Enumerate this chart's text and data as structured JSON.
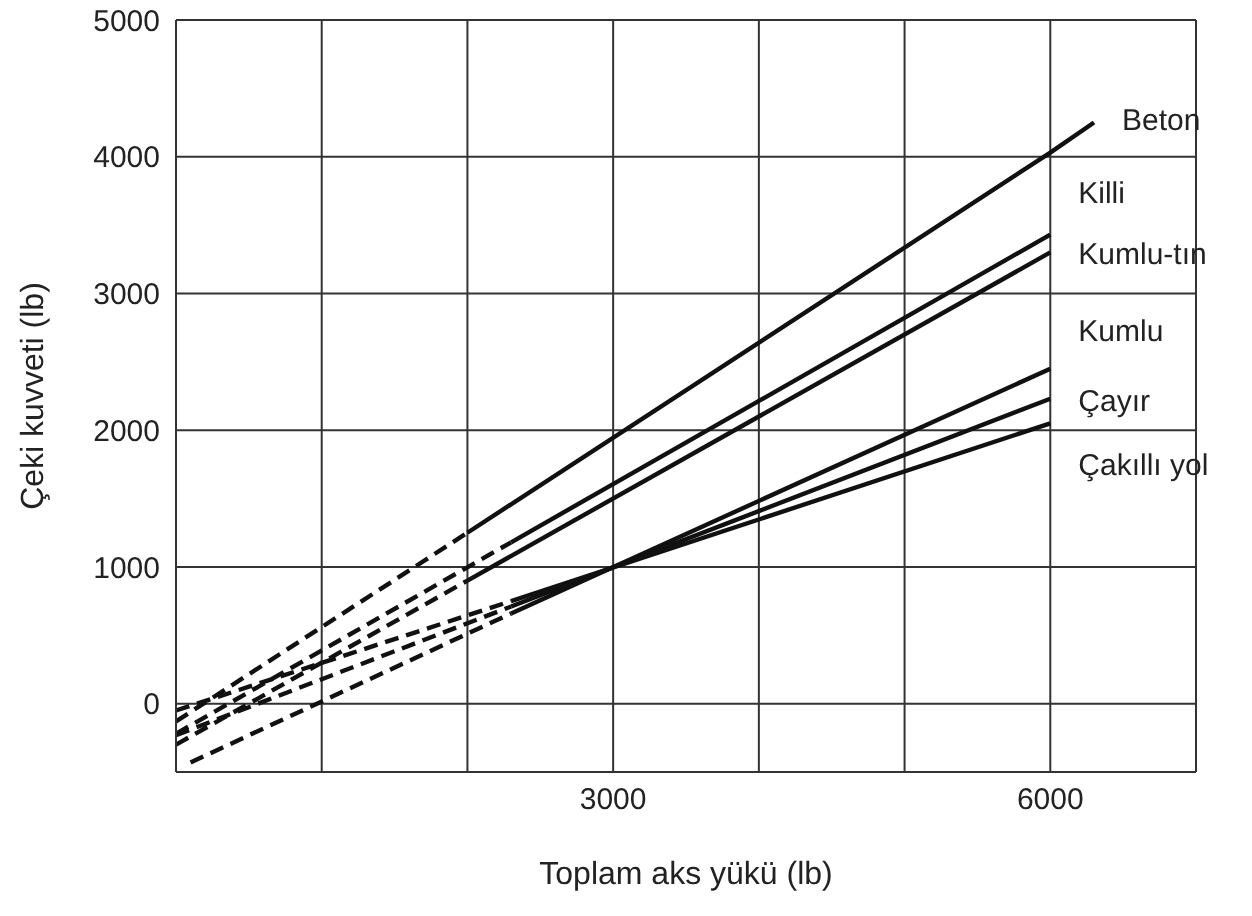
{
  "chart_data": {
    "type": "line",
    "xlabel": "Toplam aks yükü (lb)",
    "ylabel": "Çeki kuvveti (lb)",
    "xlim": [
      0,
      7000
    ],
    "xticks": [
      {
        "value": 0,
        "label": null
      },
      {
        "value": 1000,
        "label": null
      },
      {
        "value": 2000,
        "label": null
      },
      3000,
      {
        "value": 4000,
        "label": null
      },
      {
        "value": 5000,
        "label": null
      },
      6000,
      {
        "value": 7000,
        "label": null
      }
    ],
    "ylim": [
      -500,
      5000
    ],
    "yticks": [
      0,
      1000,
      2000,
      3000,
      4000,
      5000
    ],
    "grid": true,
    "marker": "none",
    "series": [
      {
        "name": "Beton",
        "color": "#111111",
        "line_style": "solid",
        "x": [
          2000,
          6000,
          6300
        ],
        "values": [
          1250,
          4030,
          4250
        ]
      },
      {
        "name": "Killi",
        "color": "#111111",
        "line_style": "solid",
        "x": [
          2300,
          6000
        ],
        "values": [
          1180,
          3430
        ]
      },
      {
        "name": "Kumlu-tın",
        "color": "#111111",
        "line_style": "solid",
        "x": [
          2000,
          6000
        ],
        "values": [
          900,
          3300
        ]
      },
      {
        "name": "Kumlu",
        "color": "#111111",
        "line_style": "solid",
        "x": [
          2300,
          6000
        ],
        "values": [
          660,
          2450
        ]
      },
      {
        "name": "Çayır",
        "color": "#111111",
        "line_style": "solid",
        "x": [
          2300,
          6000
        ],
        "values": [
          710,
          2230
        ]
      },
      {
        "name": "Çakıllı yol",
        "color": "#111111",
        "line_style": "solid",
        "x": [
          2300,
          6000
        ],
        "values": [
          750,
          2050
        ]
      },
      {
        "color": "#111111",
        "line_style": "dashed",
        "x": [
          0,
          2000
        ],
        "values": [
          -130,
          1250
        ]
      },
      {
        "color": "#111111",
        "line_style": "dashed",
        "x": [
          0,
          2300
        ],
        "values": [
          -220,
          1180
        ]
      },
      {
        "color": "#111111",
        "line_style": "dashed",
        "x": [
          0,
          2000
        ],
        "values": [
          -300,
          900
        ]
      },
      {
        "color": "#111111",
        "line_style": "dashed",
        "x": [
          100,
          2300
        ],
        "values": [
          -430,
          660
        ]
      },
      {
        "color": "#111111",
        "line_style": "dashed",
        "x": [
          0,
          2300
        ],
        "values": [
          -230,
          710
        ]
      },
      {
        "color": "#111111",
        "line_style": "dashed",
        "x": [
          0,
          2300
        ],
        "values": [
          -50,
          750
        ]
      }
    ]
  }
}
